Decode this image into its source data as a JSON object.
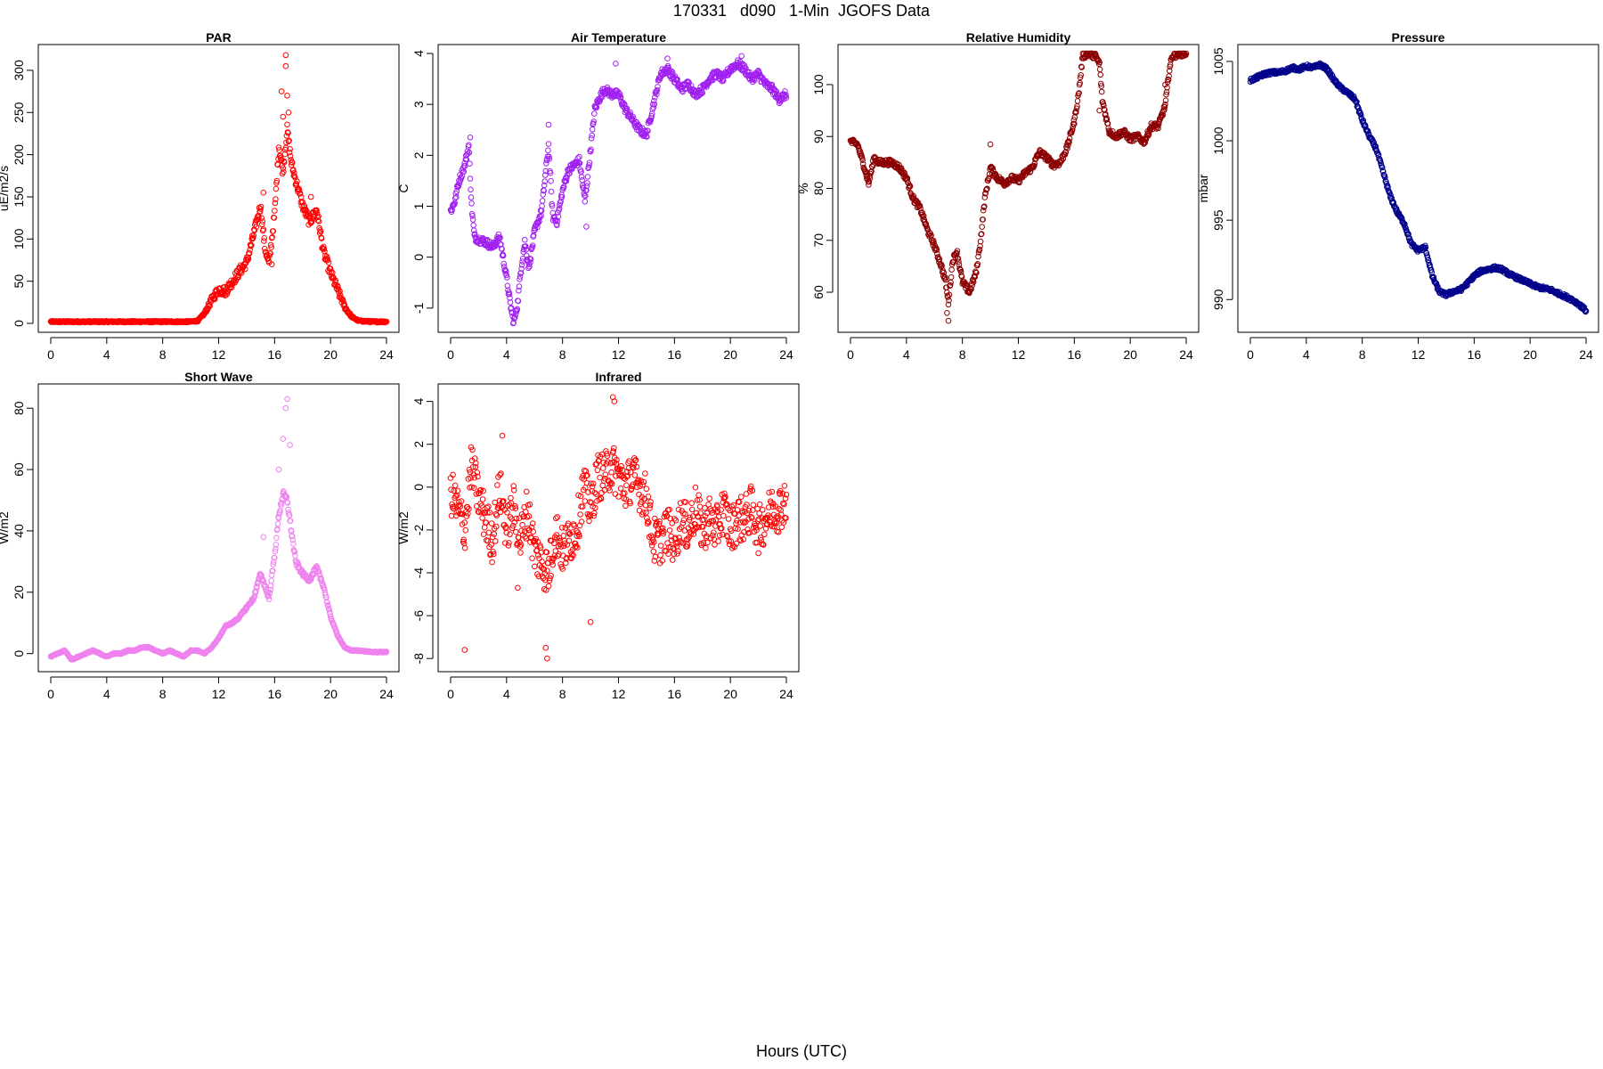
{
  "figure": {
    "title": "170331   d090   1-Min  JGOFS Data",
    "xlabel": "Hours (UTC)"
  },
  "chart_data": [
    {
      "type": "scatter",
      "title": "PAR",
      "ylabel": "uE/m2/s",
      "color": "#ff0000",
      "xlim": [
        0,
        24
      ],
      "ylim": [
        0,
        320
      ],
      "xticks": [
        0,
        4,
        8,
        12,
        16,
        20,
        24
      ],
      "yticks": [
        0,
        50,
        100,
        150,
        200,
        250,
        300
      ],
      "series": [
        {
          "x": [
            0,
            1,
            2,
            3,
            4,
            5,
            6,
            7,
            8,
            9,
            10,
            10.5,
            11,
            11.5,
            12,
            12.5,
            13,
            13.5,
            14,
            14.5,
            15,
            15.3,
            15.6,
            16,
            16.3,
            16.6,
            16.9,
            17.2,
            17.5,
            18,
            18.5,
            19,
            19.5,
            20,
            20.5,
            21,
            21.5,
            22,
            23,
            24
          ],
          "y": [
            2,
            2,
            2,
            2,
            2,
            2,
            2,
            2,
            2,
            2,
            2,
            3,
            12,
            28,
            40,
            38,
            50,
            62,
            72,
            105,
            140,
            90,
            70,
            130,
            210,
            180,
            230,
            190,
            170,
            140,
            120,
            135,
            85,
            60,
            40,
            20,
            8,
            3,
            2,
            2
          ]
        }
      ],
      "highlights": [
        {
          "x": 16.8,
          "y": 318
        },
        {
          "x": 16.8,
          "y": 305
        },
        {
          "x": 16.5,
          "y": 275
        },
        {
          "x": 16.9,
          "y": 270
        },
        {
          "x": 16.6,
          "y": 245
        },
        {
          "x": 17.0,
          "y": 250
        },
        {
          "x": 15.2,
          "y": 155
        },
        {
          "x": 15.8,
          "y": 70
        },
        {
          "x": 18.6,
          "y": 150
        }
      ]
    },
    {
      "type": "scatter",
      "title": "Air Temperature",
      "ylabel": "C",
      "color": "#a020f0",
      "xlim": [
        0,
        24
      ],
      "ylim": [
        -1.3,
        4.0
      ],
      "xticks": [
        0,
        4,
        8,
        12,
        16,
        20,
        24
      ],
      "yticks": [
        -1,
        0,
        1,
        2,
        3,
        4
      ],
      "series": [
        {
          "x": [
            0,
            0.3,
            0.6,
            1,
            1.3,
            1.5,
            1.7,
            2,
            2.5,
            3,
            3.5,
            4,
            4.2,
            4.5,
            4.8,
            5,
            5.3,
            5.6,
            6,
            6.5,
            7,
            7.3,
            7.6,
            8,
            8.4,
            8.8,
            9.2,
            9.6,
            10,
            10.3,
            10.6,
            11,
            11.5,
            12,
            12.5,
            13,
            13.5,
            14,
            14.5,
            15,
            15.5,
            16,
            16.5,
            17,
            17.5,
            18,
            18.5,
            19,
            19.5,
            20,
            20.5,
            21,
            21.5,
            22,
            22.5,
            23,
            23.5,
            24
          ],
          "y": [
            0.9,
            1.1,
            1.5,
            1.8,
            2.2,
            1.0,
            0.4,
            0.35,
            0.3,
            0.2,
            0.4,
            -0.4,
            -0.8,
            -1.3,
            -0.9,
            -0.3,
            0.3,
            -0.2,
            0.5,
            0.9,
            2.2,
            0.8,
            0.7,
            1.3,
            1.7,
            1.8,
            1.9,
            1.1,
            2.1,
            2.9,
            3.1,
            3.3,
            3.2,
            3.2,
            2.9,
            2.7,
            2.5,
            2.4,
            3.0,
            3.6,
            3.7,
            3.5,
            3.3,
            3.4,
            3.2,
            3.3,
            3.5,
            3.6,
            3.5,
            3.7,
            3.8,
            3.7,
            3.5,
            3.6,
            3.4,
            3.3,
            3.1,
            3.2
          ]
        }
      ],
      "highlights": [
        {
          "x": 1.4,
          "y": 2.35
        },
        {
          "x": 7.0,
          "y": 2.6
        },
        {
          "x": 9.7,
          "y": 0.6
        },
        {
          "x": 11.8,
          "y": 3.8
        },
        {
          "x": 15.5,
          "y": 3.9
        },
        {
          "x": 20.8,
          "y": 3.95
        }
      ]
    },
    {
      "type": "scatter",
      "title": "Relative Humidity",
      "ylabel": "%",
      "color": "#8b0000",
      "xlim": [
        0,
        24
      ],
      "ylim": [
        54,
        106
      ],
      "xticks": [
        0,
        4,
        8,
        12,
        16,
        20,
        24
      ],
      "yticks": [
        60,
        70,
        80,
        90,
        100
      ],
      "series": [
        {
          "x": [
            0,
            0.5,
            1,
            1.3,
            1.7,
            2,
            3,
            3.5,
            4,
            4.5,
            5,
            5.5,
            6,
            6.5,
            6.8,
            7,
            7.3,
            7.6,
            8,
            8.5,
            9,
            9.3,
            9.6,
            10,
            10.5,
            11,
            11.5,
            12,
            12.5,
            13,
            13.5,
            14,
            14.5,
            15,
            15.5,
            16,
            16.3,
            16.6,
            17,
            17.5,
            17.8,
            18,
            18.5,
            19,
            19.5,
            20,
            20.5,
            21,
            21.5,
            22,
            22.5,
            22.8,
            23,
            23.5,
            24
          ],
          "y": [
            89,
            88.5,
            84,
            81,
            86,
            85,
            85,
            84,
            82,
            78,
            76,
            72,
            69,
            65,
            62,
            58,
            66,
            68,
            62,
            60,
            64,
            70,
            78,
            84,
            82,
            81,
            82,
            81.5,
            83,
            84,
            87,
            86,
            84.5,
            85,
            88,
            93,
            98,
            105.5,
            106,
            105.5,
            104,
            97,
            91,
            90,
            91,
            89.5,
            90,
            89,
            92,
            92,
            96,
            103,
            105.5,
            106,
            106
          ]
        }
      ],
      "highlights": [
        {
          "x": 7.0,
          "y": 54.5
        },
        {
          "x": 6.9,
          "y": 56
        },
        {
          "x": 10.0,
          "y": 88.5
        },
        {
          "x": 17.8,
          "y": 95
        },
        {
          "x": 22.5,
          "y": 100
        }
      ]
    },
    {
      "type": "scatter",
      "title": "Pressure",
      "ylabel": "mbar",
      "color": "#00008b",
      "xlim": [
        0,
        24
      ],
      "ylim": [
        988.5,
        1005.5
      ],
      "xticks": [
        0,
        4,
        8,
        12,
        16,
        20,
        24
      ],
      "yticks": [
        990,
        995,
        1000,
        1005
      ],
      "series": [
        {
          "x": [
            0,
            0.5,
            1,
            1.5,
            2,
            2.5,
            3,
            3.5,
            4,
            4.5,
            5,
            5.5,
            6,
            6.5,
            7,
            7.5,
            8,
            8.5,
            9,
            9.5,
            10,
            10.5,
            11,
            11.5,
            12,
            12.5,
            13,
            13.5,
            14,
            14.5,
            15,
            15.5,
            16,
            16.5,
            17,
            17.5,
            18,
            18.5,
            19,
            19.5,
            20,
            20.5,
            21,
            21.5,
            22,
            22.5,
            23,
            23.5,
            24
          ],
          "y": [
            1003.8,
            1004.0,
            1004.2,
            1004.3,
            1004.3,
            1004.4,
            1004.6,
            1004.5,
            1004.7,
            1004.6,
            1004.8,
            1004.5,
            1003.8,
            1003.3,
            1003.0,
            1002.6,
            1001.3,
            1000.3,
            999.5,
            998.0,
            996.5,
            995.5,
            994.8,
            993.5,
            993.1,
            993.3,
            991.5,
            990.5,
            990.3,
            990.5,
            990.6,
            991.0,
            991.5,
            991.8,
            991.9,
            992.0,
            991.9,
            991.6,
            991.4,
            991.2,
            991.0,
            990.8,
            990.7,
            990.6,
            990.4,
            990.2,
            990.0,
            989.7,
            989.3
          ]
        }
      ],
      "highlights": []
    },
    {
      "type": "scatter",
      "title": "Short Wave",
      "ylabel": "W/m2",
      "color": "#ee82ee",
      "xlim": [
        0,
        24
      ],
      "ylim": [
        -3,
        85
      ],
      "xticks": [
        0,
        4,
        8,
        12,
        16,
        20,
        24
      ],
      "yticks": [
        0,
        20,
        40,
        60,
        80
      ],
      "series": [
        {
          "x": [
            0,
            0.5,
            1,
            1.5,
            2,
            2.5,
            3,
            3.5,
            4,
            4.5,
            5,
            5.5,
            6,
            6.5,
            7,
            7.5,
            8,
            8.5,
            9,
            9.5,
            10,
            10.5,
            11,
            11.5,
            12,
            12.5,
            13,
            13.5,
            14,
            14.5,
            15,
            15.3,
            15.6,
            16,
            16.3,
            16.6,
            16.9,
            17.2,
            17.5,
            18,
            18.5,
            19,
            19.5,
            20,
            20.5,
            21,
            21.5,
            22,
            23,
            24
          ],
          "y": [
            -1,
            0,
            1,
            -2,
            -1,
            0,
            1,
            0,
            -1,
            0,
            0,
            1,
            1,
            2,
            2,
            1,
            0,
            1,
            0,
            -1,
            1,
            1,
            0,
            2,
            5,
            9,
            10,
            12,
            15,
            18,
            26,
            22,
            18,
            32,
            45,
            52,
            50,
            40,
            30,
            26,
            24,
            28,
            22,
            12,
            6,
            2,
            1,
            1,
            0.5,
            0.5
          ]
        }
      ],
      "highlights": [
        {
          "x": 16.9,
          "y": 83
        },
        {
          "x": 16.8,
          "y": 80
        },
        {
          "x": 16.6,
          "y": 70
        },
        {
          "x": 17.1,
          "y": 68
        },
        {
          "x": 16.3,
          "y": 60
        },
        {
          "x": 15.2,
          "y": 38
        }
      ]
    },
    {
      "type": "scatter",
      "title": "Infrared",
      "ylabel": "W/m2",
      "color": "#ff0000",
      "xlim": [
        0,
        24
      ],
      "ylim": [
        -8.2,
        4.4
      ],
      "xticks": [
        0,
        4,
        8,
        12,
        16,
        20,
        24
      ],
      "yticks": [
        -8,
        -6,
        -4,
        -2,
        0,
        2,
        4
      ],
      "series": [
        {
          "x": [
            0,
            0.5,
            1,
            1.5,
            2,
            2.5,
            3,
            3.5,
            4,
            4.5,
            5,
            5.5,
            6,
            6.5,
            7,
            7.5,
            8,
            8.5,
            9,
            9.5,
            10,
            10.5,
            11,
            11.5,
            12,
            12.5,
            13,
            13.5,
            14,
            14.5,
            15,
            15.5,
            16,
            16.5,
            17,
            17.5,
            18,
            18.5,
            19,
            19.5,
            20,
            20.5,
            21,
            21.5,
            22,
            22.5,
            23,
            23.5,
            24
          ],
          "y": [
            -0.2,
            -1,
            -2,
            1,
            -0.5,
            -1.5,
            -2.5,
            0,
            -2,
            -1,
            -2.5,
            -1,
            -3,
            -3.5,
            -4,
            -2,
            -3,
            -2.5,
            -2,
            0,
            -1,
            0.5,
            0.5,
            1,
            0.5,
            0,
            0.5,
            0,
            -0.5,
            -2.5,
            -2.5,
            -2,
            -2.5,
            -1.5,
            -2,
            -1,
            -2,
            -1.5,
            -2,
            -1,
            -2,
            -1.5,
            -1.5,
            -1,
            -2,
            -1.5,
            -1,
            -1,
            -0.5
          ]
        }
      ],
      "highlights": [
        {
          "x": 6.9,
          "y": -8
        },
        {
          "x": 6.8,
          "y": -7.5
        },
        {
          "x": 1.0,
          "y": -7.6
        },
        {
          "x": 11.6,
          "y": 4.2
        },
        {
          "x": 11.7,
          "y": 4.0
        },
        {
          "x": 10.0,
          "y": -6.3
        },
        {
          "x": 3.7,
          "y": 2.4
        },
        {
          "x": 4.8,
          "y": -4.7
        }
      ]
    }
  ]
}
